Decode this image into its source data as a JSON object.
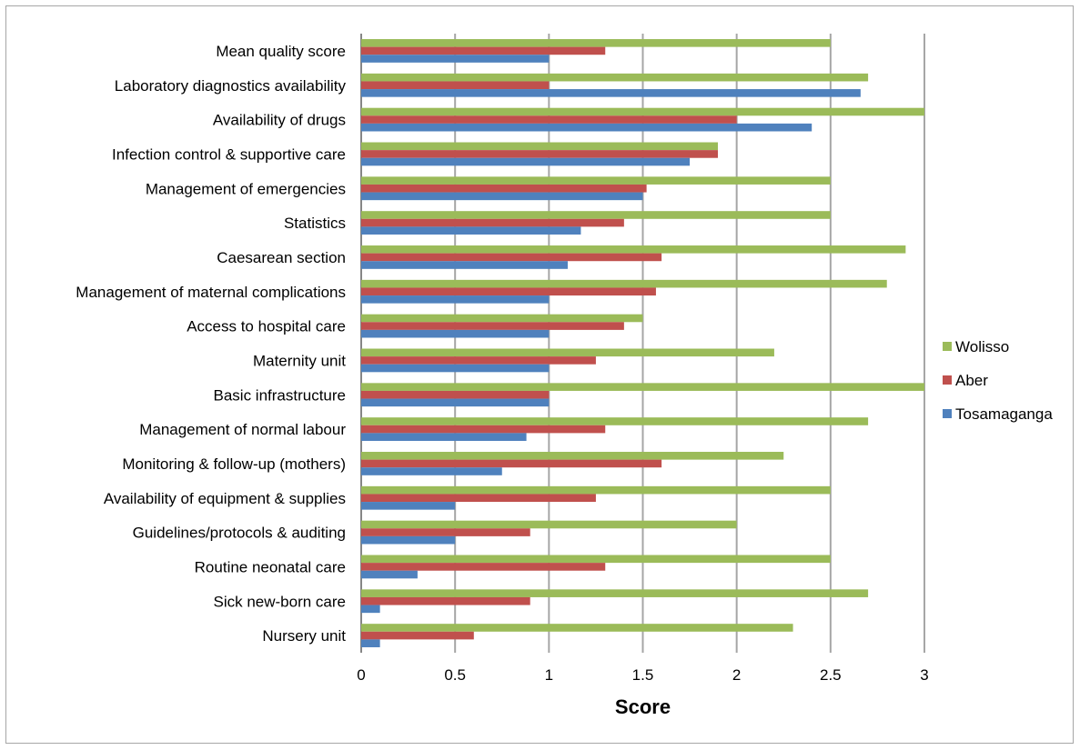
{
  "chart_data": {
    "type": "bar",
    "orientation": "horizontal",
    "title": "",
    "xlabel": "Score",
    "ylabel": "",
    "xlim": [
      0,
      3
    ],
    "xticks": [
      "0",
      "0.5",
      "1",
      "1.5",
      "2",
      "2.5",
      "3"
    ],
    "grid": "vertical",
    "legend_position": "right",
    "categories": [
      "Mean quality score",
      "Laboratory diagnostics availability",
      "Availability of drugs",
      "Infection control & supportive care",
      "Management of emergencies",
      "Statistics",
      "Caesarean section",
      "Management of maternal complications",
      "Access to hospital care",
      "Maternity unit",
      "Basic infrastructure",
      "Management of normal labour",
      "Monitoring & follow-up (mothers)",
      "Availability of equipment & supplies",
      "Guidelines/protocols & auditing",
      "Routine neonatal care",
      "Sick new-born care",
      "Nursery unit"
    ],
    "series": [
      {
        "name": "Wolisso",
        "color": "#9bbb59",
        "values": [
          2.5,
          2.7,
          3.0,
          1.9,
          2.5,
          2.5,
          2.9,
          2.8,
          1.5,
          2.2,
          3.0,
          2.7,
          2.25,
          2.5,
          2.0,
          2.5,
          2.7,
          2.3
        ]
      },
      {
        "name": "Aber",
        "color": "#c0504d",
        "values": [
          1.3,
          1.0,
          2.0,
          1.9,
          1.52,
          1.4,
          1.6,
          1.57,
          1.4,
          1.25,
          1.0,
          1.3,
          1.6,
          1.25,
          0.9,
          1.3,
          0.9,
          0.6
        ]
      },
      {
        "name": "Tosamaganga",
        "color": "#4f81bd",
        "values": [
          1.0,
          2.66,
          2.4,
          1.75,
          1.5,
          1.17,
          1.1,
          1.0,
          1.0,
          1.0,
          1.0,
          0.88,
          0.75,
          0.5,
          0.5,
          0.3,
          0.1,
          0.1
        ]
      }
    ]
  }
}
